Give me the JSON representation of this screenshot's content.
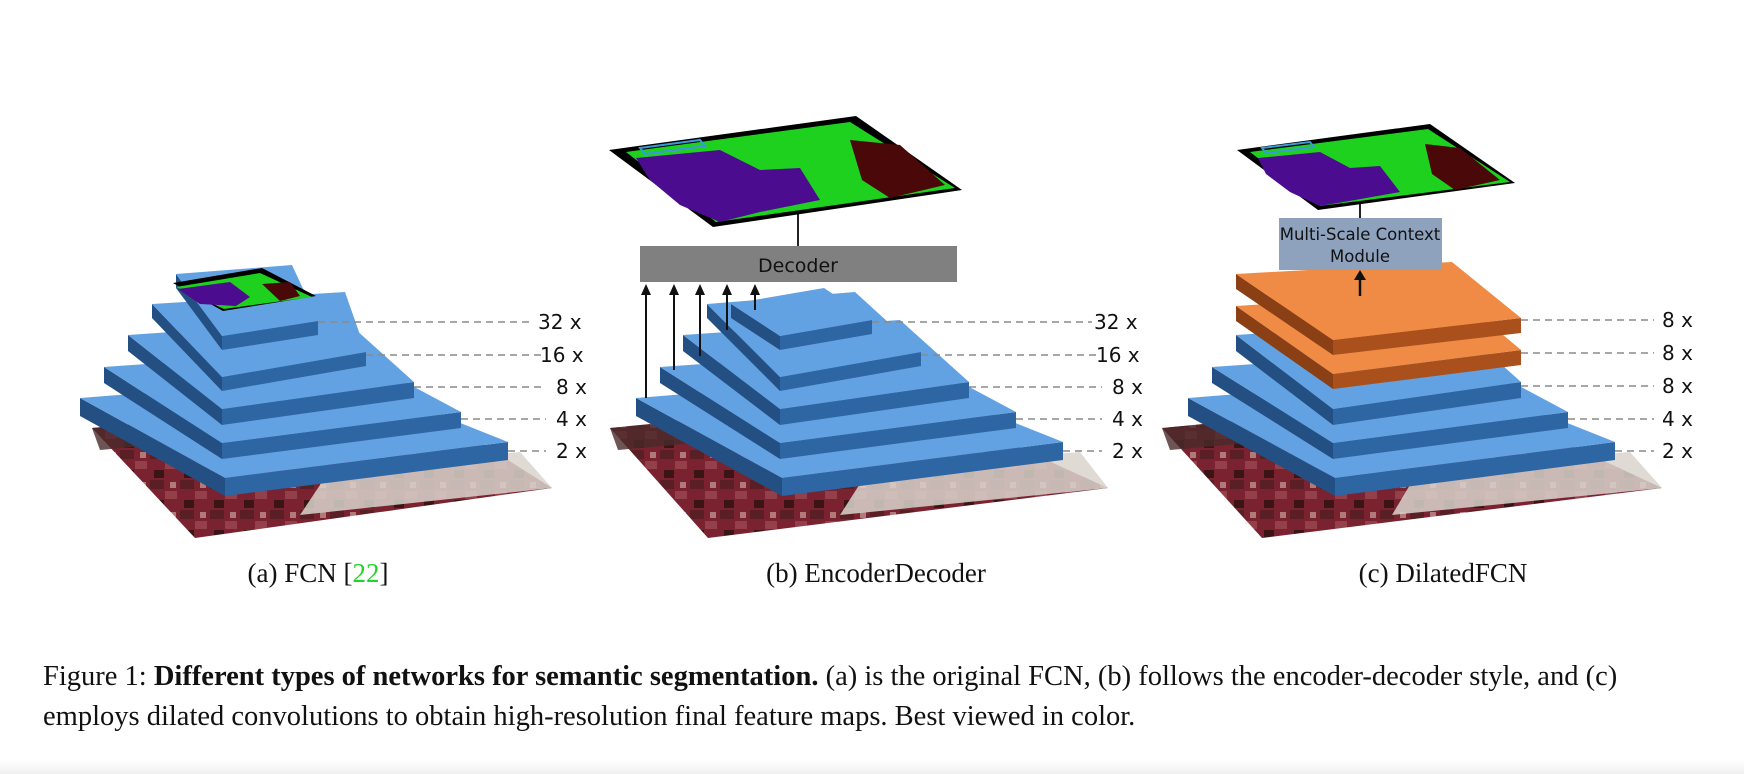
{
  "panels": [
    {
      "id": "a",
      "caption_prefix": "(a) FCN [",
      "caption_ref": "22",
      "caption_suffix": "]",
      "scales": [
        "32 x",
        "16 x",
        "8 x",
        "4 x",
        "2 x"
      ]
    },
    {
      "id": "b",
      "caption_prefix": "(b) EncoderDecoder",
      "decoder_label": "Decoder",
      "scales": [
        "32 x",
        "16 x",
        "8 x",
        "4 x",
        "2 x"
      ]
    },
    {
      "id": "c",
      "caption_prefix": "(c) DilatedFCN",
      "module_label_line1": "Multi-Scale Context",
      "module_label_line2": "Module",
      "scales": [
        "8 x",
        "8 x",
        "8 x",
        "4 x",
        "2 x"
      ]
    }
  ],
  "figure_caption": {
    "prefix": "Figure 1: ",
    "bold": "Different types of networks for semantic segmentation.",
    "rest": " (a) is the original FCN, (b) follows the encoder-decoder style, and (c) employs dilated convolutions to obtain high-resolution final feature maps. Best viewed in color."
  },
  "colors": {
    "layer_top": "#62a2e2",
    "layer_front": "#2e65a3",
    "layer_side": "#244f82",
    "orange_top": "#ef8b45",
    "orange_front": "#a9501c",
    "orange_side": "#8a3f15",
    "decoder_box": "#808080",
    "module_box": "#8ea2bd",
    "seg_green": "#1ed11e",
    "seg_purple": "#4b0c8f",
    "seg_dark_red": "#4a0808",
    "ref_green": "#22d42a"
  }
}
